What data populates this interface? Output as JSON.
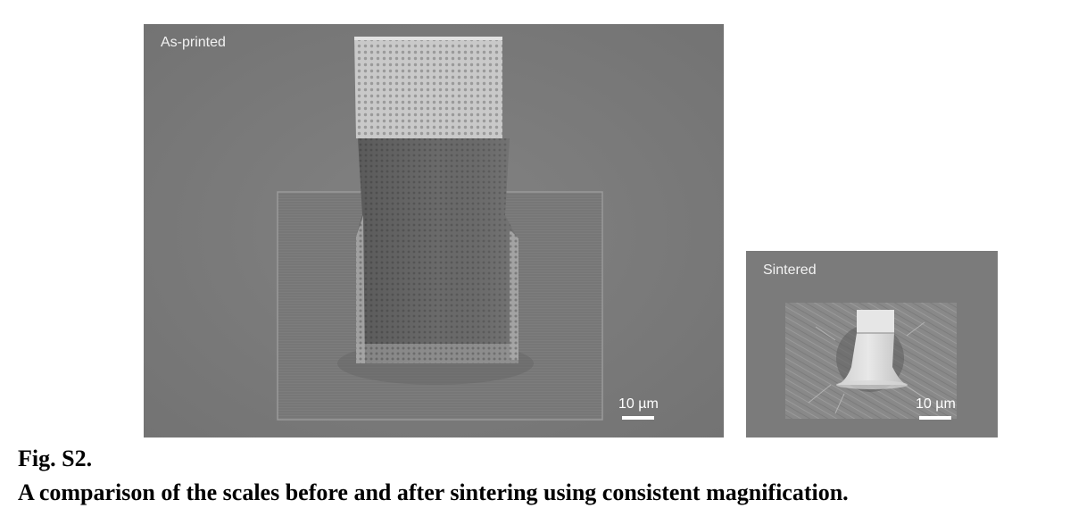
{
  "figure": {
    "label": "Fig. S2.",
    "caption": "A comparison of the scales before and after sintering using consistent magnification."
  },
  "panels": [
    {
      "label": "As-printed",
      "scale_bar": "10 µm"
    },
    {
      "label": "Sintered",
      "scale_bar": "10 µm"
    }
  ],
  "colors": {
    "sem_background": "#7a7a7a",
    "caption_text": "#000000",
    "overlay_text": "#ffffff"
  }
}
